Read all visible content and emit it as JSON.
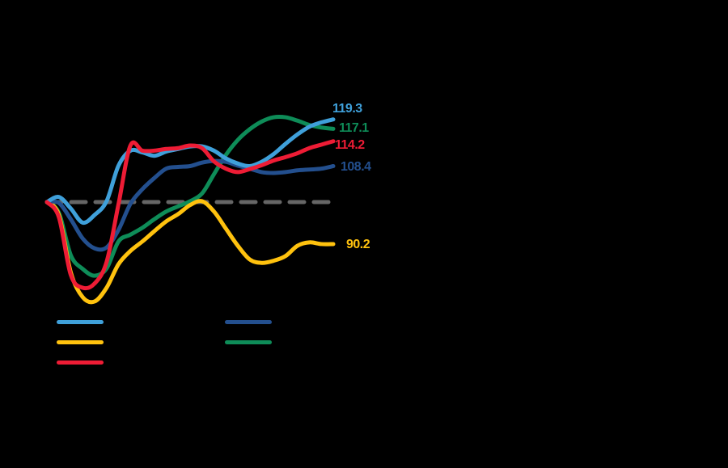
{
  "chart_data": {
    "type": "line",
    "title": "",
    "xlabel": "",
    "ylabel": "",
    "baseline": {
      "value": 100,
      "style": "dashed",
      "color": "#666666"
    },
    "ylim": [
      80,
      125
    ],
    "grid": false,
    "legend_position": "bottom-left",
    "x": [
      0,
      1,
      2,
      3,
      4,
      5,
      6,
      7,
      8,
      9,
      10,
      11,
      12,
      13,
      14,
      15,
      16,
      17,
      18,
      19,
      20,
      21,
      22,
      23,
      24
    ],
    "series": [
      {
        "name": "",
        "color": "#3FA0DA",
        "end_label": "119.3",
        "values": [
          100,
          101.2,
          98.5,
          95.2,
          97.0,
          100.2,
          108.5,
          112.0,
          111.6,
          110.8,
          111.8,
          112.4,
          113.0,
          113.0,
          112.0,
          110.2,
          109.0,
          108.4,
          109.4,
          111.2,
          113.6,
          115.8,
          117.6,
          118.6,
          119.3
        ]
      },
      {
        "name": "",
        "color": "#FFC20E",
        "end_label": "90.2",
        "values": [
          100,
          97.0,
          83.6,
          77.8,
          76.8,
          80.0,
          85.5,
          88.6,
          90.8,
          93.2,
          95.5,
          97.2,
          99.3,
          100.2,
          97.8,
          93.8,
          89.8,
          86.6,
          85.8,
          86.3,
          87.4,
          89.8,
          90.6,
          90.2,
          90.2
        ]
      },
      {
        "name": "",
        "color": "#EE1C35",
        "end_label": "114.2",
        "values": [
          100,
          96.5,
          83.0,
          80.0,
          81.0,
          86.0,
          99.5,
          113.2,
          112.0,
          112.0,
          112.4,
          112.6,
          113.2,
          112.6,
          109.5,
          107.8,
          107.0,
          107.7,
          108.6,
          109.7,
          110.5,
          111.4,
          112.6,
          113.4,
          114.2
        ]
      },
      {
        "name": "",
        "color": "#234F8E",
        "end_label": "108.4",
        "values": [
          100,
          99.8,
          96.0,
          91.5,
          89.2,
          89.4,
          93.5,
          99.6,
          103.0,
          105.6,
          107.8,
          108.2,
          108.4,
          109.2,
          109.6,
          109.4,
          108.5,
          107.8,
          107.0,
          106.8,
          107.0,
          107.4,
          107.6,
          107.8,
          108.4
        ]
      },
      {
        "name": "",
        "color": "#0E8C58",
        "end_label": "117.1",
        "values": [
          100,
          97.5,
          87.6,
          84.4,
          82.8,
          84.5,
          90.8,
          92.4,
          94.0,
          96.0,
          97.8,
          99.0,
          100.2,
          102.0,
          106.5,
          111.0,
          114.5,
          117.0,
          118.8,
          119.8,
          119.8,
          119.0,
          118.0,
          117.4,
          117.1
        ]
      }
    ]
  },
  "end_labels": [
    {
      "text": "119.3",
      "color": "#3FA0DA"
    },
    {
      "text": "117.1",
      "color": "#0E8C58"
    },
    {
      "text": "114.2",
      "color": "#EE1C35"
    },
    {
      "text": "108.4",
      "color": "#234F8E"
    },
    {
      "text": "90.2",
      "color": "#FFC20E"
    }
  ],
  "legend": [
    {
      "color": "#3FA0DA",
      "label": ""
    },
    {
      "color": "#FFC20E",
      "label": ""
    },
    {
      "color": "#EE1C35",
      "label": ""
    },
    {
      "color": "#234F8E",
      "label": ""
    },
    {
      "color": "#0E8C58",
      "label": ""
    }
  ]
}
